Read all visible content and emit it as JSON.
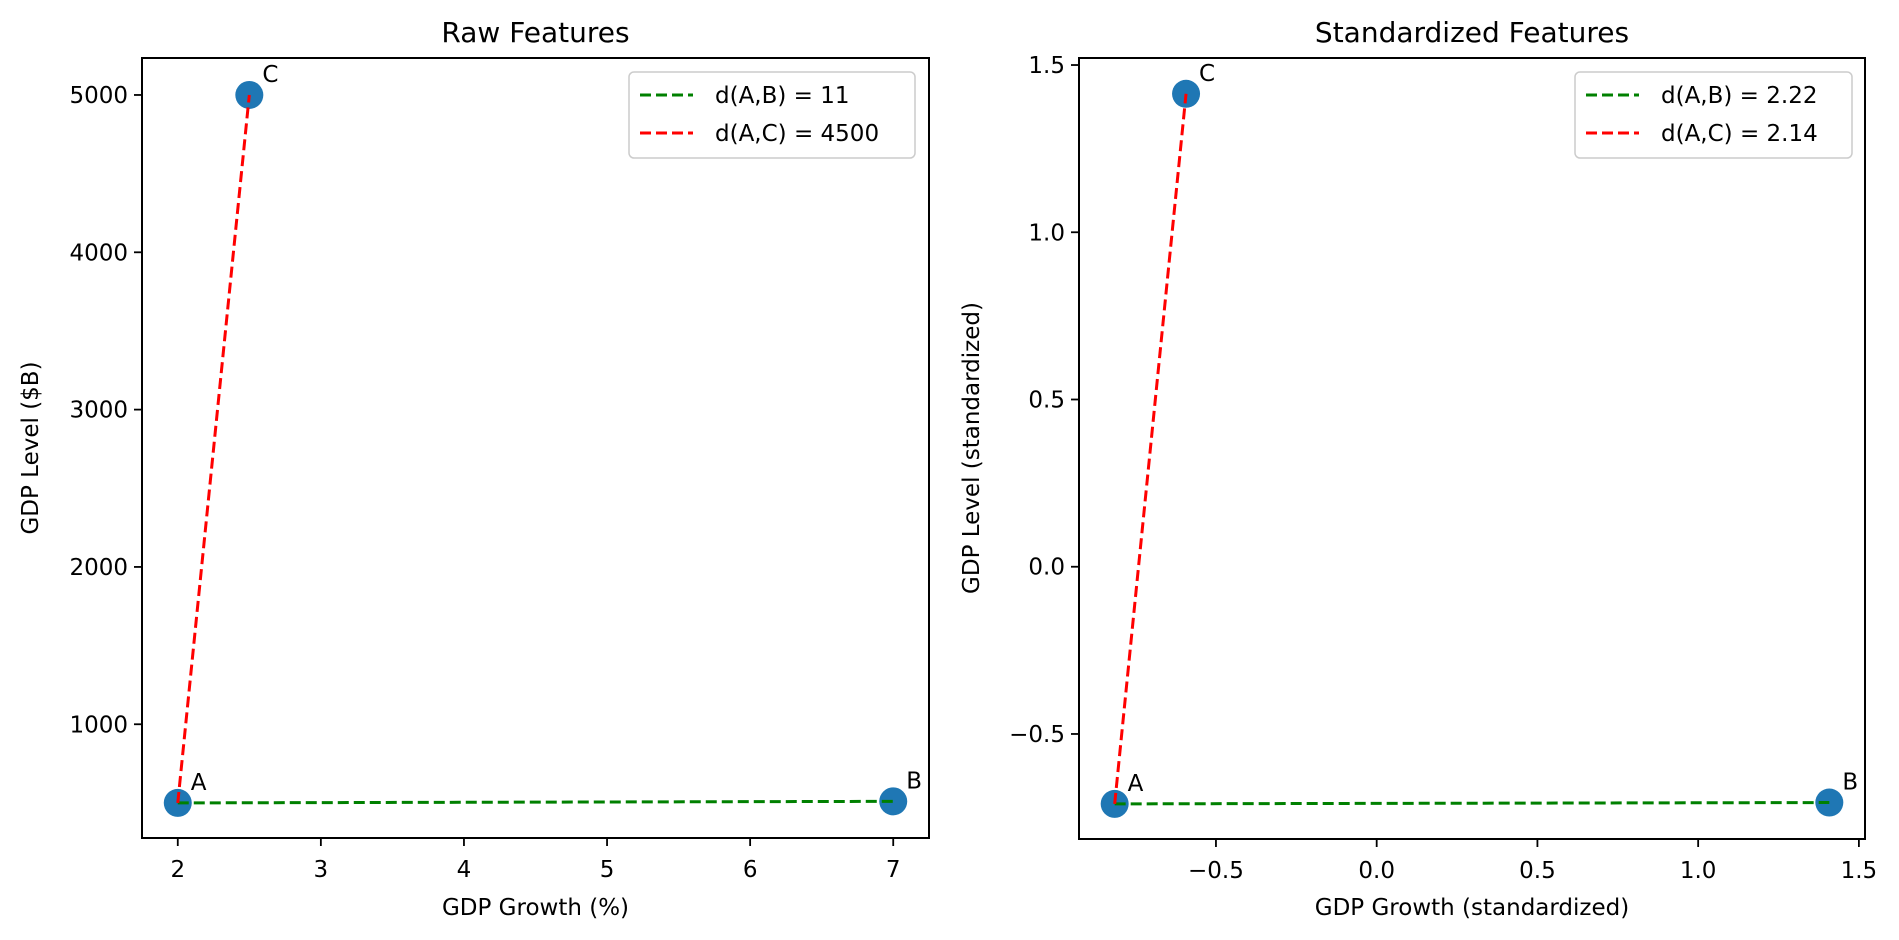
{
  "chart_data": [
    {
      "type": "scatter",
      "title": "Raw Features",
      "xlabel": "GDP Growth (%)",
      "ylabel": "GDP Level ($B)",
      "xlim": [
        1.75,
        7.25
      ],
      "ylim": [
        277,
        5235
      ],
      "xticks": [
        2,
        3,
        4,
        5,
        6,
        7
      ],
      "xtick_labels": [
        "2",
        "3",
        "4",
        "5",
        "6",
        "7"
      ],
      "yticks": [
        1000,
        2000,
        3000,
        4000,
        5000
      ],
      "ytick_labels": [
        "1000",
        "2000",
        "3000",
        "4000",
        "5000"
      ],
      "grid": false,
      "points": [
        {
          "label": "A",
          "x": 2,
          "y": 500
        },
        {
          "label": "B",
          "x": 7,
          "y": 510
        },
        {
          "label": "C",
          "x": 2.5,
          "y": 5000
        }
      ],
      "lines": [
        {
          "name": "d(A,B) = 11",
          "from": "A",
          "to": "B",
          "color": "#008000",
          "style": "dashed"
        },
        {
          "name": "d(A,C) = 4500",
          "from": "A",
          "to": "C",
          "color": "#ff0000",
          "style": "dashed"
        }
      ],
      "legend": {
        "position": "upper-right",
        "entries": [
          "d(A,B) = 11",
          "d(A,C) = 4500"
        ]
      },
      "marker_color": "#1f77b4"
    },
    {
      "type": "scatter",
      "title": "Standardized Features",
      "xlabel": "GDP Growth (standardized)",
      "ylabel": "GDP Level (standardized)",
      "xlim": [
        -0.926,
        1.519
      ],
      "ylim": [
        -0.814,
        1.521
      ],
      "xticks": [
        -0.5,
        0.0,
        0.5,
        1.0,
        1.5
      ],
      "xtick_labels": [
        "−0.5",
        "0.0",
        "0.5",
        "1.0",
        "1.5"
      ],
      "yticks": [
        -0.5,
        0.0,
        0.5,
        1.0,
        1.5
      ],
      "ytick_labels": [
        "−0.5",
        "0.0",
        "0.5",
        "1.0",
        "1.5"
      ],
      "grid": false,
      "points": [
        {
          "label": "A",
          "x": -0.815,
          "y": -0.709
        },
        {
          "label": "B",
          "x": 1.408,
          "y": -0.705
        },
        {
          "label": "C",
          "x": -0.593,
          "y": 1.414
        }
      ],
      "lines": [
        {
          "name": "d(A,B) = 2.22",
          "from": "A",
          "to": "B",
          "color": "#008000",
          "style": "dashed"
        },
        {
          "name": "d(A,C) = 2.14",
          "from": "A",
          "to": "C",
          "color": "#ff0000",
          "style": "dashed"
        }
      ],
      "legend": {
        "position": "upper-right",
        "entries": [
          "d(A,B) = 2.22",
          "d(A,C) = 2.14"
        ]
      },
      "marker_color": "#1f77b4"
    }
  ]
}
